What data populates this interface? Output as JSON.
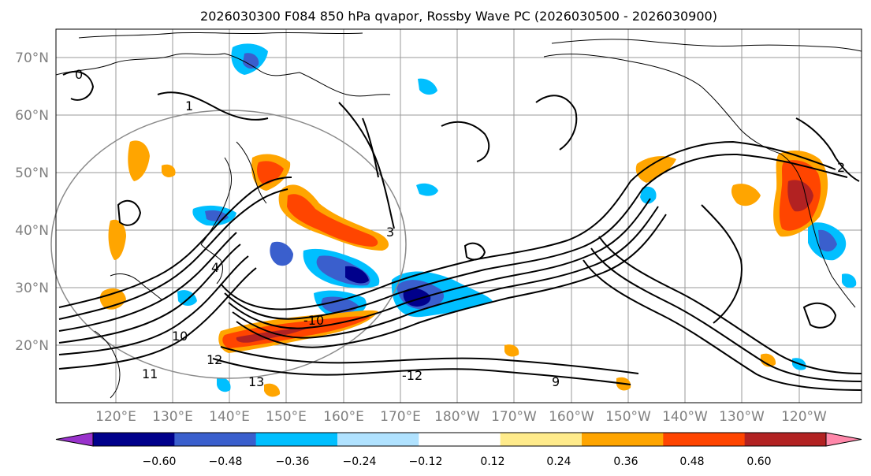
{
  "title": "2026030300 F084 850 hPa qvapor, Rossby Wave PC (2026030500 - 2026030900)",
  "map": {
    "lat_labels": [
      "70°N",
      "60°N",
      "50°N",
      "40°N",
      "30°N",
      "20°N"
    ],
    "lon_labels": [
      "120°E",
      "130°E",
      "140°E",
      "150°E",
      "160°E",
      "170°E",
      "180°W",
      "170°W",
      "160°W",
      "150°W",
      "140°W",
      "130°W",
      "120°W"
    ],
    "contour_labels": [
      "0",
      "1",
      "2",
      "3",
      "4",
      "9",
      "10",
      "11",
      "12",
      "13",
      "-10",
      "-12"
    ]
  },
  "colorbar": {
    "colors": [
      "#9932cc",
      "#00008b",
      "#3a5fcd",
      "#00bfff",
      "#b0e2ff",
      "#ffffff",
      "#ffeb8b",
      "#ffa500",
      "#ff4500",
      "#b22222",
      "#ff88aa"
    ],
    "tick_labels": [
      "−0.60",
      "−0.48",
      "−0.36",
      "−0.24",
      "−0.12",
      "0.12",
      "0.24",
      "0.36",
      "0.48",
      "0.60"
    ]
  }
}
